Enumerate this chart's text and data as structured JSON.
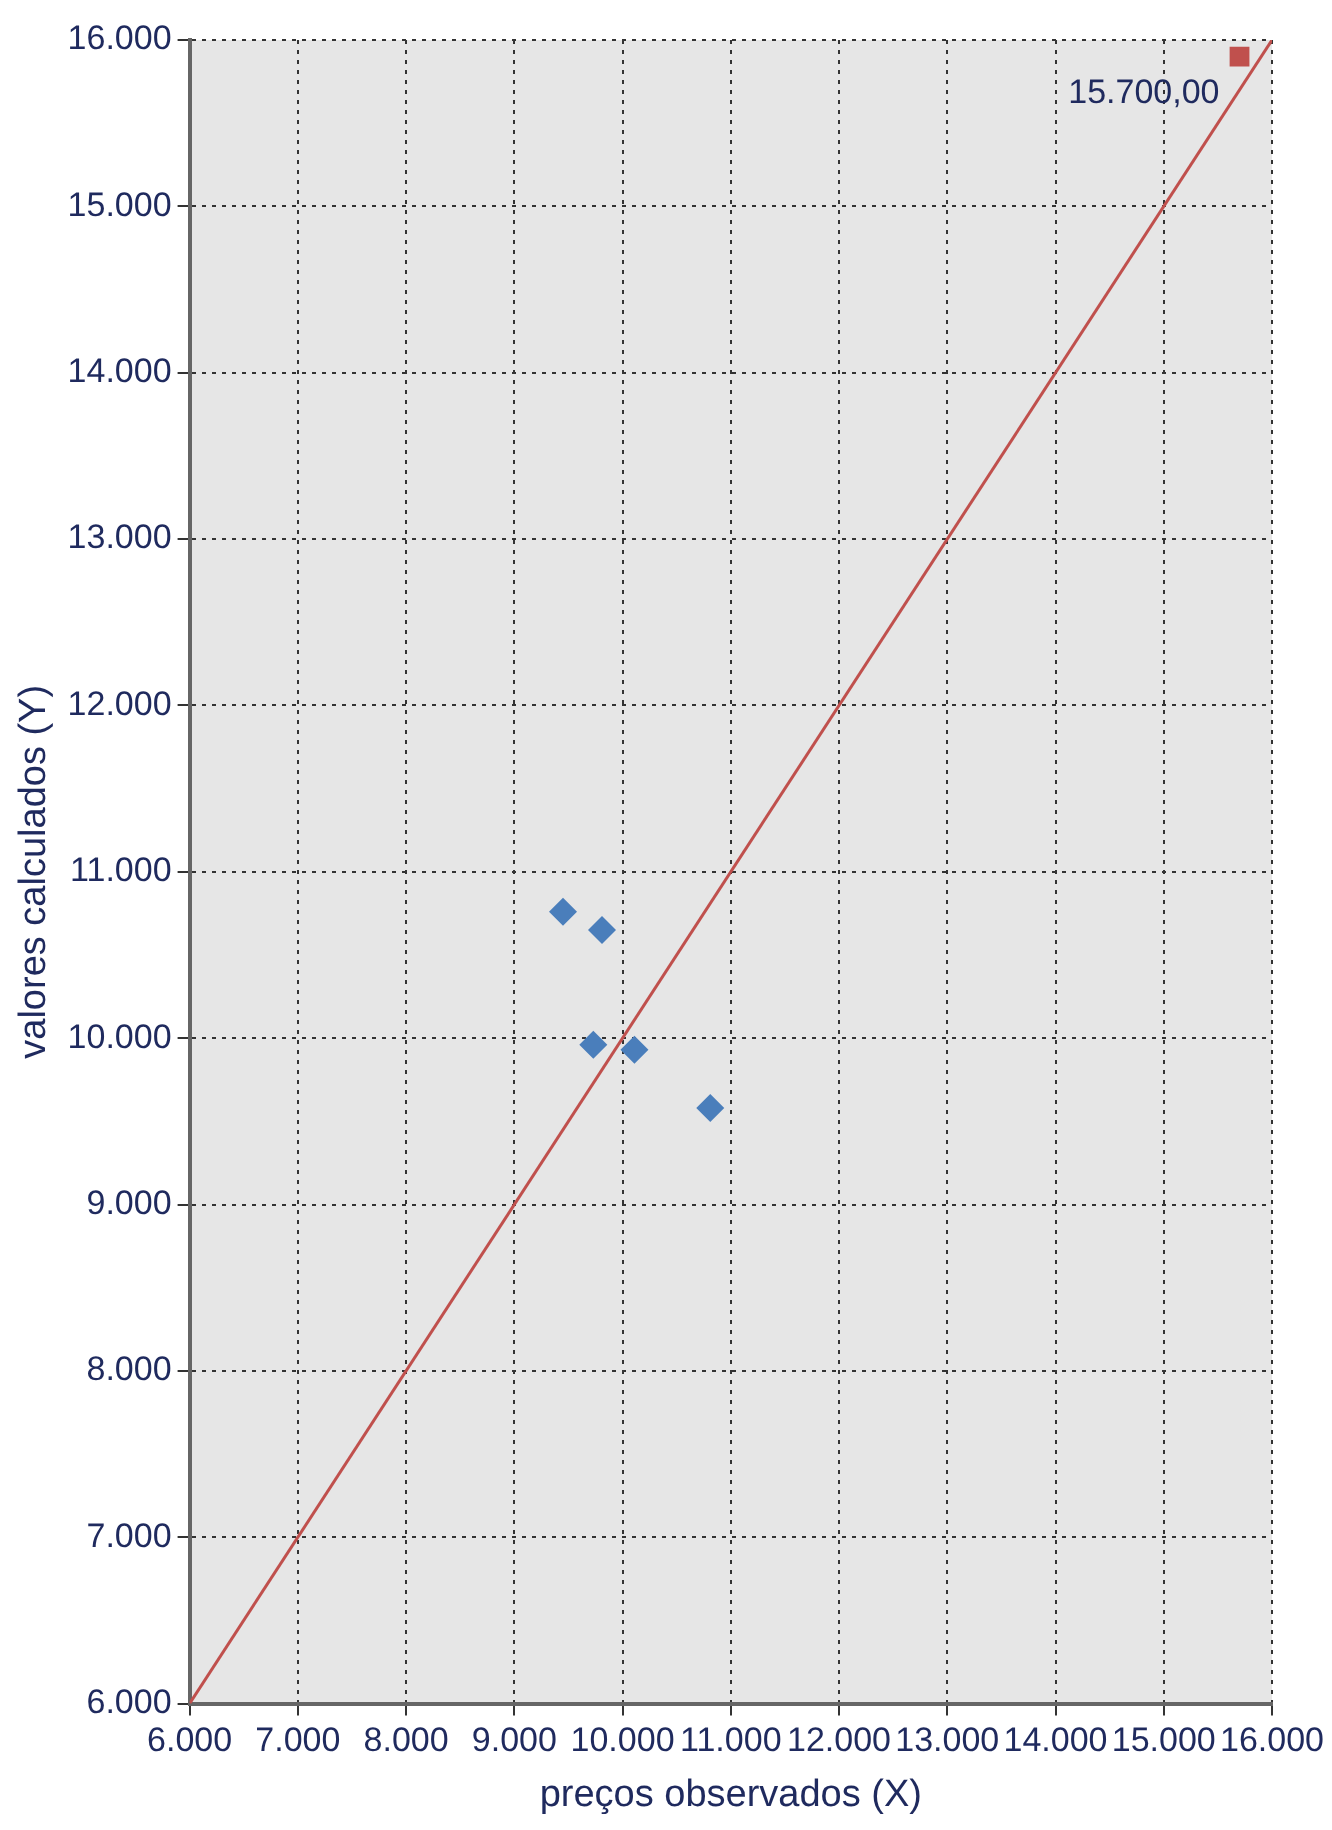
{
  "chart_data": {
    "type": "scatter",
    "xlabel": "preços observados (X)",
    "ylabel": "valores calculados (Y)",
    "xlim": [
      6000,
      16000
    ],
    "ylim": [
      6000,
      16000
    ],
    "xticks": [
      {
        "value": 6000,
        "label": "6.000"
      },
      {
        "value": 7000,
        "label": "7.000"
      },
      {
        "value": 8000,
        "label": "8.000"
      },
      {
        "value": 9000,
        "label": "9.000"
      },
      {
        "value": 10000,
        "label": "10.000"
      },
      {
        "value": 11000,
        "label": "11.000"
      },
      {
        "value": 12000,
        "label": "12.000"
      },
      {
        "value": 13000,
        "label": "13.000"
      },
      {
        "value": 14000,
        "label": "14.000"
      },
      {
        "value": 15000,
        "label": "15.000"
      },
      {
        "value": 16000,
        "label": "16.000"
      }
    ],
    "yticks": [
      {
        "value": 6000,
        "label": "6.000"
      },
      {
        "value": 7000,
        "label": "7.000"
      },
      {
        "value": 8000,
        "label": "8.000"
      },
      {
        "value": 9000,
        "label": "9.000"
      },
      {
        "value": 10000,
        "label": "10.000"
      },
      {
        "value": 11000,
        "label": "11.000"
      },
      {
        "value": 12000,
        "label": "12.000"
      },
      {
        "value": 13000,
        "label": "13.000"
      },
      {
        "value": 14000,
        "label": "14.000"
      },
      {
        "value": 15000,
        "label": "15.000"
      },
      {
        "value": 16000,
        "label": "16.000"
      }
    ],
    "grid": true,
    "legend": false,
    "series": [
      {
        "type": "line",
        "color": "#c0504d",
        "x": [
          6000,
          16000
        ],
        "values": [
          6000,
          16000
        ],
        "marker": "none"
      },
      {
        "color": "#4a7ebb",
        "x": [
          10810,
          10110,
          9810,
          9730,
          9450
        ],
        "values": [
          9580,
          9930,
          10650,
          9960,
          10760
        ],
        "marker": "diamond"
      },
      {
        "color": "#c0504d",
        "x": [
          15700
        ],
        "values": [
          15900
        ],
        "marker": "square"
      }
    ],
    "annotations": [
      {
        "text": "15.700,00",
        "x": 15700,
        "y": 15900
      }
    ]
  }
}
